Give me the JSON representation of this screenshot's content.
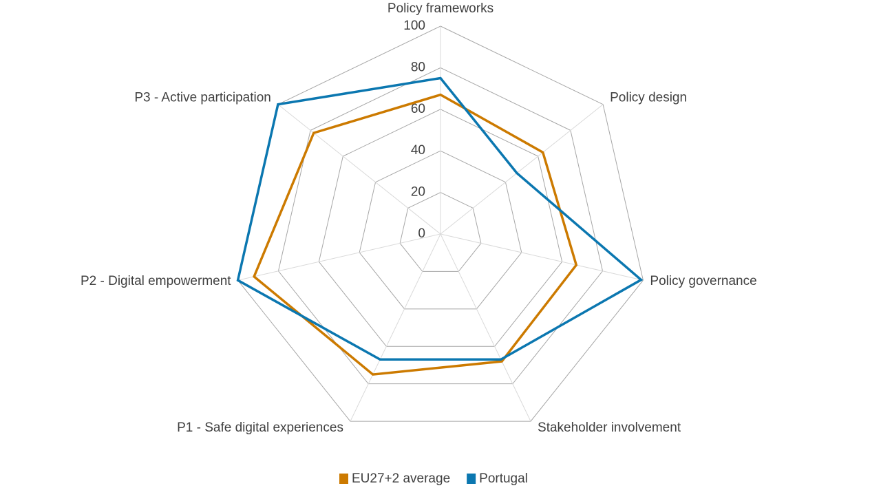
{
  "chart_data": {
    "type": "radar",
    "categories": [
      "Policy frameworks",
      "Policy design",
      "Policy governance",
      "Stakeholder involvement",
      "P1 - Safe digital experiences",
      "P2 - Digital empowerment",
      "P3 - Active participation"
    ],
    "series": [
      {
        "name": "EU27+2 average",
        "color": "#cc7a00",
        "values": [
          67,
          63,
          67,
          68,
          75,
          92,
          78
        ]
      },
      {
        "name": "Portugal",
        "color": "#0b77b0",
        "values": [
          75,
          47,
          99,
          67,
          67,
          100,
          100
        ]
      }
    ],
    "ylim": [
      0,
      100
    ],
    "yticks": [
      0,
      20,
      40,
      60,
      80,
      100
    ],
    "grid": true,
    "legend": "bottom"
  }
}
